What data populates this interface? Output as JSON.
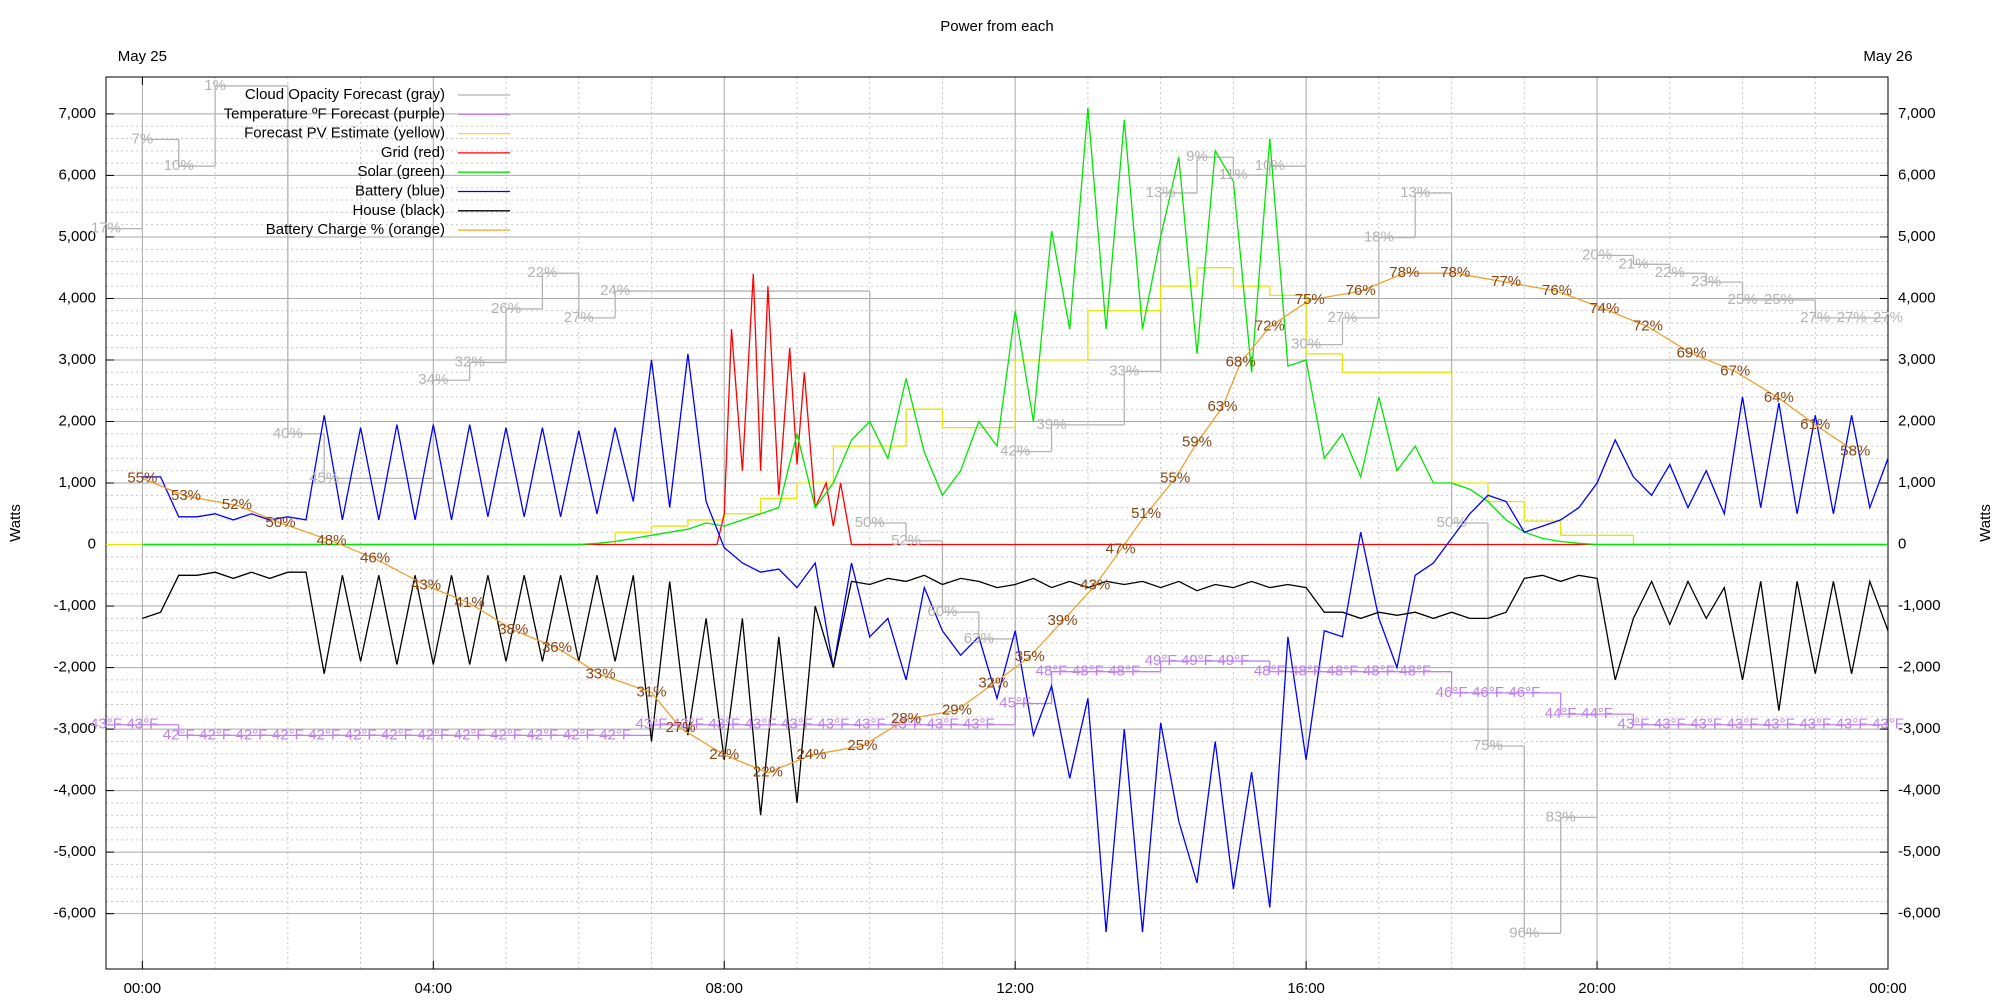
{
  "chart_data": {
    "type": "line",
    "title": "Power from each",
    "y_label": "Watts",
    "x2ticks": [
      {
        "value": 0,
        "label": "May 25"
      },
      {
        "value": 24,
        "label": "May 26"
      }
    ],
    "xlim": [
      -0.5,
      24
    ],
    "xticks": [
      {
        "value": 0,
        "label": "00:00"
      },
      {
        "value": 4,
        "label": "04:00"
      },
      {
        "value": 8,
        "label": "08:00"
      },
      {
        "value": 12,
        "label": "12:00"
      },
      {
        "value": 16,
        "label": "16:00"
      },
      {
        "value": 20,
        "label": "20:00"
      },
      {
        "value": 24,
        "label": "00:00"
      }
    ],
    "ylim": [
      -6900,
      7600
    ],
    "yticks": [
      {
        "value": -6000,
        "label": "-6,000"
      },
      {
        "value": -5000,
        "label": "-5,000"
      },
      {
        "value": -4000,
        "label": "-4,000"
      },
      {
        "value": -3000,
        "label": "-3,000"
      },
      {
        "value": -2000,
        "label": "-2,000"
      },
      {
        "value": -1000,
        "label": "-1,000"
      },
      0,
      {
        "value": 1000,
        "label": "1,000"
      },
      {
        "value": 2000,
        "label": "2,000"
      },
      {
        "value": 3000,
        "label": "3,000"
      },
      {
        "value": 4000,
        "label": "4,000"
      },
      {
        "value": 5000,
        "label": "5,000"
      },
      {
        "value": 6000,
        "label": "6,000"
      },
      {
        "value": 7000,
        "label": "7,000"
      }
    ],
    "y2lim": [
      0,
      100
    ],
    "y3lim": [
      100,
      0
    ],
    "y4lim": [
      20,
      104
    ],
    "grid": true,
    "minor_grid": true,
    "legend": "top-left",
    "x": [
      0,
      0.25,
      0.5,
      0.75,
      1,
      1.25,
      1.5,
      1.75,
      2,
      2.25,
      2.5,
      2.75,
      3,
      3.25,
      3.5,
      3.75,
      4,
      4.25,
      4.5,
      4.75,
      5,
      5.25,
      5.5,
      5.75,
      6,
      6.25,
      6.5,
      6.75,
      7,
      7.25,
      7.5,
      7.75,
      8,
      8.25,
      8.5,
      8.75,
      9,
      9.25,
      9.5,
      9.75,
      10,
      10.25,
      10.5,
      10.75,
      11,
      11.25,
      11.5,
      11.75,
      12,
      12.25,
      12.5,
      12.75,
      13,
      13.25,
      13.5,
      13.75,
      14,
      14.25,
      14.5,
      14.75,
      15,
      15.25,
      15.5,
      15.75,
      16,
      16.25,
      16.5,
      16.75,
      17,
      17.25,
      17.5,
      17.75,
      18,
      18.25,
      18.5,
      18.75,
      19,
      19.25,
      19.5,
      19.75,
      20,
      20.25,
      20.5,
      20.75,
      21,
      21.25,
      21.5,
      21.75,
      22,
      22.25,
      22.5,
      22.75,
      23,
      23.25,
      23.5,
      23.75,
      24
    ],
    "series": [
      {
        "name": "Cloud Opacity Forecast (gray)",
        "color": "#b4b4b4",
        "axis": "y3",
        "step": true,
        "x": [
          -0.5,
          0,
          0.5,
          1,
          2,
          2.5,
          4,
          4.5,
          5,
          5.5,
          6,
          6.5,
          10,
          10.5,
          11,
          11.5,
          12,
          12.5,
          13.5,
          14,
          14.5,
          15,
          15.5,
          16,
          16.5,
          17,
          17.5,
          18,
          18.5,
          19,
          19.5,
          20,
          20.5,
          21,
          21.5,
          22,
          22.5,
          23,
          23.5,
          24
        ],
        "values": [
          17,
          7,
          10,
          1,
          40,
          45,
          34,
          32,
          26,
          22,
          27,
          24,
          50,
          52,
          60,
          63,
          42,
          39,
          33,
          13,
          9,
          11,
          10,
          30,
          27,
          18,
          13,
          50,
          75,
          96,
          83,
          20,
          21,
          22,
          23,
          25,
          25,
          27,
          27,
          27
        ],
        "value_labels": [
          "17%",
          "7%",
          "10%",
          "1%",
          "40%",
          "45%",
          "34%",
          "32%",
          "26%",
          "22%",
          "27%",
          "24%",
          "50%",
          "52%",
          "60%",
          "63%",
          "42%",
          "39%",
          "33%",
          "13%",
          "9%",
          "11%",
          "10%",
          "30%",
          "27%",
          "18%",
          "13%",
          "50%",
          "75%",
          "96%",
          "83%",
          "20%",
          "21%",
          "22%",
          "23%",
          "25%",
          "25%",
          "27%",
          "27%",
          "27%"
        ]
      },
      {
        "name": "Temperature ºF Forecast (purple)",
        "color": "#c080f0",
        "axis": "y4",
        "step": true,
        "x": [
          -0.5,
          0,
          0.5,
          1,
          1.5,
          2,
          2.5,
          3,
          3.5,
          4,
          4.5,
          5,
          5.5,
          6,
          6.5,
          7,
          7.5,
          8,
          8.5,
          9,
          9.5,
          10,
          10.5,
          11,
          11.5,
          12,
          12.5,
          13,
          13.5,
          14,
          14.5,
          15,
          15.5,
          16,
          16.5,
          17,
          17.5,
          18,
          18.5,
          19,
          19.5,
          20,
          20.5,
          21,
          21.5,
          22,
          22.5,
          23,
          23.5,
          24
        ],
        "values": [
          43,
          43,
          42,
          42,
          42,
          42,
          42,
          42,
          42,
          42,
          42,
          42,
          42,
          42,
          42,
          43,
          43,
          43,
          43,
          43,
          43,
          43,
          43,
          43,
          43,
          45,
          48,
          48,
          48,
          49,
          49,
          49,
          48,
          48,
          48,
          48,
          48,
          46,
          46,
          46,
          44,
          44,
          43,
          43,
          43,
          43,
          43,
          43,
          43,
          43
        ],
        "value_labels": [
          "43°F",
          "43°F",
          "42°F",
          "42°F",
          "42°F",
          "42°F",
          "42°F",
          "42°F",
          "42°F",
          "42°F",
          "42°F",
          "42°F",
          "42°F",
          "42°F",
          "42°F",
          "43°F",
          "43°F",
          "43°F",
          "43°F",
          "43°F",
          "43°F",
          "43°F",
          "43°F",
          "43°F",
          "43°F",
          "45°F",
          "48°F",
          "48°F",
          "48°F",
          "49°F",
          "49°F",
          "49°F",
          "48°F",
          "48°F",
          "48°F",
          "48°F",
          "48°F",
          "46°F",
          "46°F",
          "46°F",
          "44°F",
          "44°F",
          "43°F",
          "43°F",
          "43°F",
          "43°F",
          "43°F",
          "43°F",
          "43°F",
          "43°F"
        ]
      },
      {
        "name": "Forecast PV Estimate (yellow)",
        "color": "#e6e600",
        "axis": "y",
        "step": true,
        "x": [
          -0.5,
          6.5,
          7,
          7.5,
          8,
          8.5,
          9,
          9.5,
          10,
          10.5,
          11,
          12,
          12.5,
          13,
          14,
          14.5,
          15,
          15.5,
          16,
          16.5,
          17,
          18,
          18.5,
          19,
          19.5,
          20.5,
          24
        ],
        "values": [
          0,
          200,
          300,
          400,
          500,
          750,
          1000,
          1600,
          1600,
          2200,
          1900,
          3000,
          3000,
          3800,
          4200,
          4500,
          4200,
          4050,
          3100,
          2800,
          2800,
          1000,
          700,
          380,
          150,
          0,
          0
        ]
      },
      {
        "name": "Grid (red)",
        "color": "#ff0000",
        "axis": "y",
        "x": [
          0,
          7.9,
          8,
          8.1,
          8.25,
          8.4,
          8.5,
          8.6,
          8.75,
          8.9,
          9,
          9.1,
          9.25,
          9.4,
          9.5,
          9.6,
          9.75,
          10,
          24
        ],
        "values": [
          0,
          0,
          500,
          3500,
          1200,
          4400,
          1200,
          4200,
          800,
          3200,
          1300,
          2800,
          600,
          1000,
          300,
          1000,
          0,
          0,
          0
        ]
      },
      {
        "name": "Solar (green)",
        "color": "#00e600",
        "axis": "y",
        "values": [
          0,
          0,
          0,
          0,
          0,
          0,
          0,
          0,
          0,
          0,
          0,
          0,
          0,
          0,
          0,
          0,
          0,
          0,
          0,
          0,
          0,
          0,
          0,
          0,
          0,
          20,
          50,
          100,
          150,
          200,
          250,
          350,
          300,
          400,
          500,
          600,
          1800,
          600,
          1000,
          1700,
          2000,
          1400,
          2700,
          1500,
          800,
          1200,
          2000,
          1600,
          3800,
          2000,
          5100,
          3500,
          7100,
          3500,
          6900,
          3500,
          5000,
          6300,
          3100,
          6400,
          5900,
          2800,
          6600,
          2900,
          3000,
          1400,
          1800,
          1100,
          2400,
          1200,
          1600,
          1000,
          1000,
          900,
          700,
          400,
          200,
          100,
          50,
          20,
          0,
          0,
          0,
          0,
          0,
          0,
          0,
          0,
          0,
          0,
          0,
          0,
          0,
          0,
          0,
          0,
          0
        ]
      },
      {
        "name": "Battery (blue)",
        "color": "#0000ff",
        "axis": "y",
        "values": [
          1100,
          1100,
          450,
          450,
          500,
          400,
          500,
          400,
          450,
          400,
          2100,
          400,
          1900,
          400,
          1950,
          400,
          1950,
          400,
          1950,
          450,
          1900,
          450,
          1900,
          450,
          1850,
          500,
          1900,
          700,
          3000,
          600,
          3100,
          700,
          -50,
          -300,
          -450,
          -400,
          -700,
          -300,
          -2000,
          -300,
          -1500,
          -1200,
          -2200,
          -700,
          -1400,
          -1800,
          -1500,
          -2500,
          -1400,
          -3100,
          -2300,
          -3800,
          -2500,
          -6300,
          -3000,
          -6300,
          -2900,
          -4500,
          -5500,
          -3200,
          -5600,
          -3700,
          -5900,
          -1500,
          -3500,
          -1400,
          -1500,
          200,
          -1200,
          -2000,
          -500,
          -300,
          100,
          500,
          800,
          700,
          200,
          300,
          400,
          600,
          1000,
          1700,
          1100,
          800,
          1300,
          600,
          1200,
          500,
          2400,
          600,
          2300,
          500,
          2100,
          500,
          2100,
          600,
          1400
        ]
      },
      {
        "name": "House (black)",
        "color": "#000000",
        "axis": "y",
        "values": [
          -1200,
          -1100,
          -500,
          -500,
          -450,
          -550,
          -450,
          -550,
          -450,
          -450,
          -2100,
          -500,
          -1900,
          -500,
          -1950,
          -500,
          -1950,
          -500,
          -1950,
          -500,
          -1900,
          -500,
          -1900,
          -500,
          -1900,
          -500,
          -1900,
          -500,
          -3200,
          -600,
          -3100,
          -1200,
          -3500,
          -1200,
          -4400,
          -1500,
          -4200,
          -1000,
          -2000,
          -600,
          -650,
          -550,
          -600,
          -500,
          -650,
          -550,
          -600,
          -700,
          -650,
          -550,
          -700,
          -600,
          -700,
          -600,
          -650,
          -600,
          -700,
          -600,
          -750,
          -650,
          -700,
          -600,
          -700,
          -650,
          -700,
          -1100,
          -1100,
          -1200,
          -1100,
          -1150,
          -1100,
          -1200,
          -1100,
          -1200,
          -1200,
          -1100,
          -550,
          -500,
          -600,
          -500,
          -550,
          -2200,
          -1200,
          -600,
          -1300,
          -600,
          -1200,
          -700,
          -2200,
          -600,
          -2700,
          -600,
          -2100,
          -600,
          -2100,
          -600,
          -1400
        ]
      },
      {
        "name": "Battery Charge % (orange)",
        "color": "#f0a030",
        "label_color": "#8b4513",
        "axis": "y2",
        "x": [
          0,
          0.6,
          1.3,
          1.9,
          2.6,
          3.2,
          3.9,
          4.5,
          5.1,
          5.7,
          6.3,
          7,
          7.4,
          8,
          8.6,
          9.2,
          9.9,
          10.5,
          11.2,
          11.7,
          12.2,
          12.65,
          13.1,
          13.45,
          13.8,
          14.2,
          14.5,
          14.85,
          15.1,
          15.5,
          16.05,
          16.75,
          17.35,
          18.05,
          18.75,
          19.45,
          20.1,
          20.7,
          21.3,
          21.9,
          22.5,
          23,
          23.55
        ],
        "values": [
          55,
          53,
          52,
          50,
          48,
          46,
          43,
          41,
          38,
          36,
          33,
          31,
          27,
          24,
          22,
          24,
          25,
          28,
          29,
          32,
          35,
          39,
          43,
          47,
          51,
          55,
          59,
          63,
          68,
          72,
          75,
          76,
          78,
          78,
          77,
          76,
          74,
          72,
          69,
          67,
          64,
          61,
          58
        ],
        "value_labels": [
          "55%",
          "53%",
          "52%",
          "50%",
          "48%",
          "46%",
          "43%",
          "41%",
          "38%",
          "36%",
          "33%",
          "31%",
          "27%",
          "24%",
          "22%",
          "24%",
          "25%",
          "28%",
          "29%",
          "32%",
          "35%",
          "39%",
          "43%",
          "47%",
          "51%",
          "55%",
          "59%",
          "63%",
          "68%",
          "72%",
          "75%",
          "76%",
          "78%",
          "78%",
          "77%",
          "76%",
          "74%",
          "72%",
          "69%",
          "67%",
          "64%",
          "61%",
          "58%"
        ]
      }
    ]
  }
}
